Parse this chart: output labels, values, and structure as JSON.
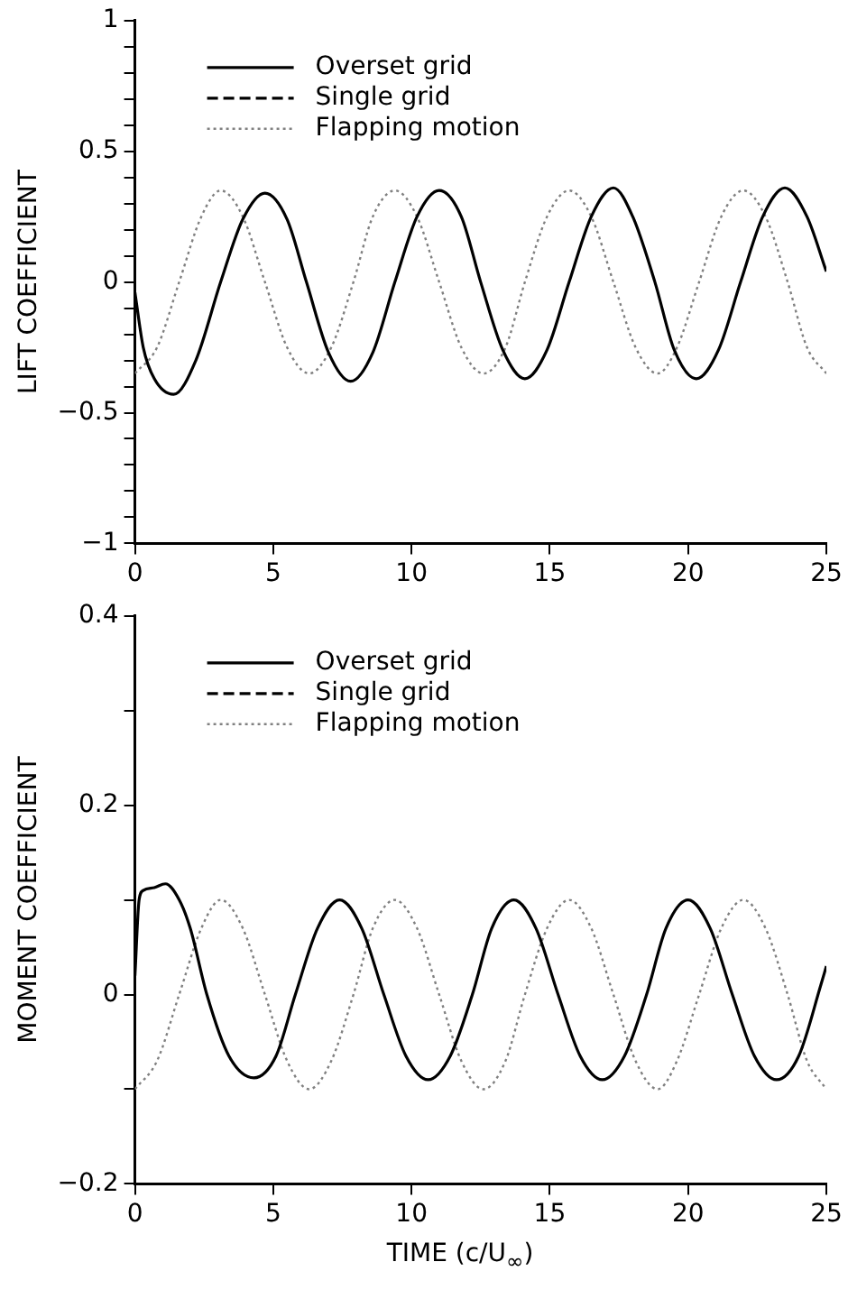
{
  "chart_data": [
    {
      "type": "line",
      "ylabel": "LIFT COEFFICIENT",
      "xlim": [
        0,
        25
      ],
      "xticks": [
        0,
        5,
        10,
        15,
        20,
        25
      ],
      "ylim": [
        -1,
        1
      ],
      "yticks": [
        -1,
        {
          "value": -0.9,
          "label": null
        },
        {
          "value": -0.8,
          "label": null
        },
        {
          "value": -0.7,
          "label": null
        },
        {
          "value": -0.6,
          "label": null
        },
        -0.5,
        {
          "value": -0.4,
          "label": null
        },
        {
          "value": -0.3,
          "label": null
        },
        {
          "value": -0.2,
          "label": null
        },
        {
          "value": -0.1,
          "label": null
        },
        0,
        {
          "value": 0.1,
          "label": null
        },
        {
          "value": 0.2,
          "label": null
        },
        {
          "value": 0.3,
          "label": null
        },
        {
          "value": 0.4,
          "label": null
        },
        0.5,
        {
          "value": 0.6,
          "label": null
        },
        {
          "value": 0.7,
          "label": null
        },
        {
          "value": 0.8,
          "label": null
        },
        {
          "value": 0.9,
          "label": null
        },
        1
      ],
      "grid": false,
      "legend": "top left",
      "marker": "none",
      "series": [
        {
          "name": "Overset grid",
          "color": "#000000",
          "line_style": "solid",
          "x": [
            0,
            0.3,
            0.7,
            1.4,
            2.2,
            3.1,
            3.9,
            4.7,
            5.5,
            6.2,
            7.0,
            7.8,
            8.6,
            9.4,
            10.2,
            11.0,
            11.8,
            12.5,
            13.3,
            14.1,
            14.9,
            15.7,
            16.5,
            17.3,
            18.0,
            18.8,
            19.5,
            20.3,
            21.1,
            21.9,
            22.7,
            23.5,
            24.3,
            25
          ],
          "values": [
            -0.04,
            -0.25,
            -0.37,
            -0.43,
            -0.3,
            0,
            0.24,
            0.34,
            0.24,
            0,
            -0.27,
            -0.38,
            -0.27,
            0,
            0.25,
            0.35,
            0.25,
            0,
            -0.26,
            -0.37,
            -0.26,
            0,
            0.25,
            0.36,
            0.25,
            0,
            -0.26,
            -0.37,
            -0.26,
            0,
            0.25,
            0.36,
            0.25,
            0.04
          ]
        },
        {
          "name": "Single grid",
          "color": "#000000",
          "line_style": "dashed"
        },
        {
          "name": "Flapping motion",
          "color": "#808080",
          "line_style": "dotted",
          "x": [
            0,
            0.8,
            1.6,
            2.4,
            3.1,
            3.9,
            4.7,
            5.5,
            6.3,
            7.1,
            7.9,
            8.6,
            9.4,
            10.2,
            11.0,
            11.8,
            12.6,
            13.4,
            14.1,
            14.9,
            15.7,
            16.5,
            17.3,
            18.1,
            18.9,
            19.6,
            20.4,
            21.2,
            22.0,
            22.8,
            23.6,
            24.3,
            25
          ],
          "values": [
            -0.35,
            -0.25,
            0,
            0.25,
            0.35,
            0.25,
            0,
            -0.25,
            -0.35,
            -0.25,
            0,
            0.25,
            0.35,
            0.25,
            0,
            -0.25,
            -0.35,
            -0.25,
            0,
            0.25,
            0.35,
            0.25,
            0,
            -0.25,
            -0.35,
            -0.25,
            0,
            0.25,
            0.35,
            0.25,
            0,
            -0.25,
            -0.35
          ]
        }
      ]
    },
    {
      "type": "line",
      "ylabel": "MOMENT COEFFICIENT",
      "xlabel": "TIME (c/U$_{∞}$)",
      "xlim": [
        0,
        25
      ],
      "xticks": [
        0,
        5,
        10,
        15,
        20,
        25
      ],
      "ylim": [
        -0.2,
        0.4
      ],
      "yticks": [
        -0.2,
        {
          "value": -0.1,
          "label": null
        },
        0,
        {
          "value": 0.1,
          "label": null
        },
        0.2,
        {
          "value": 0.3,
          "label": null
        },
        0.4
      ],
      "grid": false,
      "legend": "top left",
      "marker": "none",
      "series": [
        {
          "name": "Overset grid",
          "color": "#000000",
          "line_style": "solid",
          "x": [
            0,
            0.15,
            0.3,
            0.7,
            1.1,
            1.6,
            2.0,
            2.6,
            3.4,
            4.3,
            5.1,
            5.8,
            6.6,
            7.4,
            8.2,
            9.0,
            9.8,
            10.6,
            11.4,
            12.2,
            12.9,
            13.7,
            14.5,
            15.3,
            16.1,
            16.9,
            17.7,
            18.5,
            19.2,
            20.0,
            20.8,
            21.6,
            22.4,
            23.2,
            24.0,
            24.8,
            25
          ],
          "values": [
            0.02,
            0.1,
            0.11,
            0.113,
            0.117,
            0.1,
            0.07,
            0,
            -0.065,
            -0.088,
            -0.065,
            0,
            0.07,
            0.1,
            0.07,
            0,
            -0.065,
            -0.09,
            -0.065,
            0,
            0.07,
            0.1,
            0.07,
            0,
            -0.065,
            -0.09,
            -0.065,
            0,
            0.07,
            0.1,
            0.07,
            0,
            -0.065,
            -0.09,
            -0.065,
            0.01,
            0.03
          ]
        },
        {
          "name": "Single grid",
          "color": "#000000",
          "line_style": "dashed"
        },
        {
          "name": "Flapping motion",
          "color": "#808080",
          "line_style": "dotted",
          "x": [
            0,
            0.8,
            1.6,
            2.4,
            3.1,
            3.9,
            4.7,
            5.5,
            6.3,
            7.1,
            7.9,
            8.6,
            9.4,
            10.2,
            11.0,
            11.8,
            12.6,
            13.4,
            14.1,
            14.9,
            15.7,
            16.5,
            17.3,
            18.1,
            18.9,
            19.6,
            20.4,
            21.2,
            22.0,
            22.8,
            23.6,
            24.3,
            25
          ],
          "values": [
            -0.1,
            -0.07,
            0,
            0.07,
            0.1,
            0.07,
            0,
            -0.07,
            -0.1,
            -0.07,
            0,
            0.07,
            0.1,
            0.07,
            0,
            -0.07,
            -0.1,
            -0.07,
            0,
            0.07,
            0.1,
            0.07,
            0,
            -0.07,
            -0.1,
            -0.07,
            0,
            0.07,
            0.1,
            0.07,
            0,
            -0.07,
            -0.1
          ]
        }
      ]
    }
  ]
}
